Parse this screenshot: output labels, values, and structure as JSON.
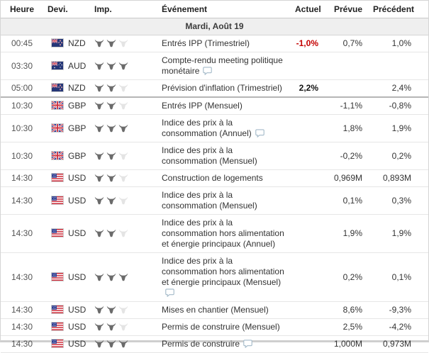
{
  "table": {
    "columns": [
      {
        "label": "Heure"
      },
      {
        "label": "Devi."
      },
      {
        "label": "Imp."
      },
      {
        "label": "Événement"
      },
      {
        "label": "Actuel"
      },
      {
        "label": "Prévue"
      },
      {
        "label": "Précédent"
      }
    ],
    "day_header": "Mardi, Août 19",
    "max_importance": 3,
    "rows": [
      {
        "time": "00:45",
        "flag": "nz",
        "currency": "NZD",
        "importance": 2,
        "event": "Entrés IPP (Trimestriel)",
        "has_comment": false,
        "actual": "-1,0%",
        "actual_style": "negative",
        "forecast": "0,7%",
        "previous": "1,0%",
        "separator_after": false
      },
      {
        "time": "03:30",
        "flag": "au",
        "currency": "AUD",
        "importance": 3,
        "event": "Compte-rendu meeting politique monétaire",
        "has_comment": true,
        "actual": "",
        "actual_style": "",
        "forecast": "",
        "previous": "",
        "separator_after": false
      },
      {
        "time": "05:00",
        "flag": "nz",
        "currency": "NZD",
        "importance": 2,
        "event": "Prévision d'inflation (Trimestriel)",
        "has_comment": false,
        "actual": "2,2%",
        "actual_style": "bold",
        "forecast": "",
        "previous": "2,4%",
        "separator_after": true
      },
      {
        "time": "10:30",
        "flag": "gb",
        "currency": "GBP",
        "importance": 2,
        "event": "Entrés IPP (Mensuel)",
        "has_comment": false,
        "actual": "",
        "actual_style": "",
        "forecast": "-1,1%",
        "previous": "-0,8%",
        "separator_after": false
      },
      {
        "time": "10:30",
        "flag": "gb",
        "currency": "GBP",
        "importance": 3,
        "event": "Indice des prix à la consommation (Annuel)",
        "has_comment": true,
        "actual": "",
        "actual_style": "",
        "forecast": "1,8%",
        "previous": "1,9%",
        "separator_after": false
      },
      {
        "time": "10:30",
        "flag": "gb",
        "currency": "GBP",
        "importance": 2,
        "event": "Indice des prix à la consommation (Mensuel)",
        "has_comment": false,
        "actual": "",
        "actual_style": "",
        "forecast": "-0,2%",
        "previous": "0,2%",
        "separator_after": false
      },
      {
        "time": "14:30",
        "flag": "us",
        "currency": "USD",
        "importance": 2,
        "event": "Construction de logements",
        "has_comment": false,
        "actual": "",
        "actual_style": "",
        "forecast": "0,969M",
        "previous": "0,893M",
        "separator_after": false
      },
      {
        "time": "14:30",
        "flag": "us",
        "currency": "USD",
        "importance": 2,
        "event": "Indice des prix à la consommation (Mensuel)",
        "has_comment": false,
        "actual": "",
        "actual_style": "",
        "forecast": "0,1%",
        "previous": "0,3%",
        "separator_after": false
      },
      {
        "time": "14:30",
        "flag": "us",
        "currency": "USD",
        "importance": 2,
        "event": "Indice des prix à la consommation hors alimentation et énergie principaux (Annuel)",
        "has_comment": false,
        "actual": "",
        "actual_style": "",
        "forecast": "1,9%",
        "previous": "1,9%",
        "separator_after": false
      },
      {
        "time": "14:30",
        "flag": "us",
        "currency": "USD",
        "importance": 3,
        "event": "Indice des prix à la consommation hors alimentation et énergie principaux (Mensuel)",
        "has_comment": true,
        "actual": "",
        "actual_style": "",
        "forecast": "0,2%",
        "previous": "0,1%",
        "separator_after": false
      },
      {
        "time": "14:30",
        "flag": "us",
        "currency": "USD",
        "importance": 2,
        "event": "Mises en chantier (Mensuel)",
        "has_comment": false,
        "actual": "",
        "actual_style": "",
        "forecast": "8,6%",
        "previous": "-9,3%",
        "separator_after": false
      },
      {
        "time": "14:30",
        "flag": "us",
        "currency": "USD",
        "importance": 2,
        "event": "Permis de construire (Mensuel)",
        "has_comment": false,
        "actual": "",
        "actual_style": "",
        "forecast": "2,5%",
        "previous": "-4,2%",
        "separator_after": false
      },
      {
        "time": "14:30",
        "flag": "us",
        "currency": "USD",
        "importance": 3,
        "event": "Permis de construire",
        "has_comment": true,
        "actual": "",
        "actual_style": "",
        "forecast": "1,000M",
        "previous": "0,973M",
        "separator_after": false
      }
    ]
  },
  "colors": {
    "negative_value": "#c40000",
    "bold_value": "#111111",
    "bull_active": "#6b6b6b",
    "bull_inactive": "#e4e4e4",
    "comment_icon_stroke": "#a4bac9",
    "day_header_bg": "#efefef"
  },
  "icons": {
    "importance": "bull-icon",
    "comment": "comment-bubble-icon",
    "flags": {
      "nz": "new-zealand-flag",
      "au": "australia-flag",
      "gb": "uk-flag",
      "us": "us-flag"
    }
  }
}
